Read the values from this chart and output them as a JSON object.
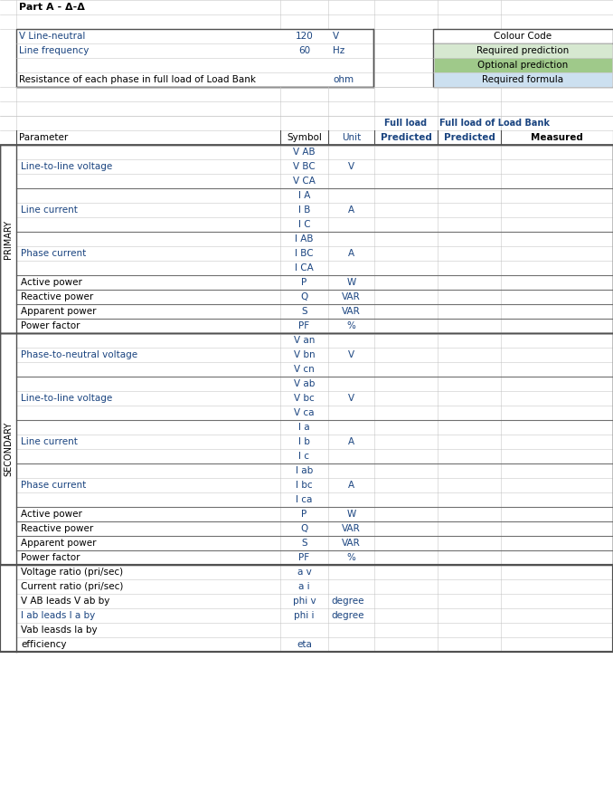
{
  "title": "Part A - Δ-Δ",
  "header_info": [
    {
      "label": "V Line-neutral",
      "value": "120",
      "unit": "V",
      "label_color": "blue"
    },
    {
      "label": "Line frequency",
      "value": "60",
      "unit": "Hz",
      "label_color": "blue"
    },
    {
      "label": "",
      "value": "",
      "unit": "",
      "label_color": "black"
    },
    {
      "label": "Resistance of each phase in full load of Load Bank",
      "value": "",
      "unit": "ohm",
      "label_color": "black",
      "green_cell": true
    }
  ],
  "colour_code": {
    "title": "Colour Code",
    "items": [
      {
        "label": "Required prediction",
        "color": "#d6e8d0"
      },
      {
        "label": "Optional prediction",
        "color": "#9fc98a"
      },
      {
        "label": "Required formula",
        "color": "#cce0f0"
      }
    ]
  },
  "primary_label": "PRIMARY",
  "secondary_label": "SECONDARY",
  "primary_rows": [
    {
      "param": "Line-to-line voltage",
      "symbols": [
        "V AB",
        "V BC",
        "V CA"
      ],
      "unit": "V",
      "pred_full": [
        true,
        false,
        false
      ],
      "pred_lb": [
        true,
        false,
        false
      ],
      "param_color": "blue"
    },
    {
      "param": "Line current",
      "symbols": [
        "I A",
        "I B",
        "I C"
      ],
      "unit": "A",
      "pred_full": [
        true,
        false,
        false
      ],
      "pred_lb": [
        true,
        false,
        false
      ],
      "param_color": "blue"
    },
    {
      "param": "Phase current",
      "symbols": [
        "I AB",
        "I BC",
        "I CA"
      ],
      "unit": "A",
      "pred_full": [
        true,
        false,
        false
      ],
      "pred_lb": [
        true,
        false,
        false
      ],
      "param_color": "blue"
    },
    {
      "param": "Active power",
      "symbols": [
        "P"
      ],
      "unit": "W",
      "pred_full": [
        false
      ],
      "pred_lb": [
        true
      ],
      "param_color": "black"
    },
    {
      "param": "Reactive power",
      "symbols": [
        "Q"
      ],
      "unit": "VAR",
      "pred_full": [
        false
      ],
      "pred_lb": [
        true
      ],
      "param_color": "black"
    },
    {
      "param": "Apparent power",
      "symbols": [
        "S"
      ],
      "unit": "VAR",
      "pred_full": [
        false
      ],
      "pred_lb": [
        false
      ],
      "param_color": "black"
    },
    {
      "param": "Power factor",
      "symbols": [
        "PF"
      ],
      "unit": "%",
      "pred_full": [
        false
      ],
      "pred_lb": [
        true
      ],
      "param_color": "black"
    }
  ],
  "secondary_rows": [
    {
      "param": "Phase-to-neutral voltage",
      "symbols": [
        "V an",
        "V bn",
        "V cn"
      ],
      "unit": "V",
      "pred_full": [
        false,
        false,
        false
      ],
      "pred_lb": [
        false,
        false,
        false
      ],
      "param_color": "blue"
    },
    {
      "param": "Line-to-line voltage",
      "symbols": [
        "V ab",
        "V bc",
        "V ca"
      ],
      "unit": "V",
      "pred_full": [
        true,
        false,
        false
      ],
      "pred_lb": [
        true,
        false,
        false
      ],
      "param_color": "blue"
    },
    {
      "param": "Line current",
      "symbols": [
        "I a",
        "I b",
        "I c"
      ],
      "unit": "A",
      "pred_full": [
        true,
        false,
        false
      ],
      "pred_lb": [
        true,
        false,
        false
      ],
      "param_color": "blue"
    },
    {
      "param": "Phase current",
      "symbols": [
        "I ab",
        "I bc",
        "I ca"
      ],
      "unit": "A",
      "pred_full": [
        true,
        false,
        false
      ],
      "pred_lb": [
        true,
        false,
        false
      ],
      "param_color": "blue"
    },
    {
      "param": "Active power",
      "symbols": [
        "P"
      ],
      "unit": "W",
      "pred_full": [
        false
      ],
      "pred_lb": [
        false
      ],
      "param_color": "black"
    },
    {
      "param": "Reactive power",
      "symbols": [
        "Q"
      ],
      "unit": "VAR",
      "pred_full": [
        false
      ],
      "pred_lb": [
        false
      ],
      "param_color": "black"
    },
    {
      "param": "Apparent power",
      "symbols": [
        "S"
      ],
      "unit": "VAR",
      "pred_full": [
        false
      ],
      "pred_lb": [
        false
      ],
      "param_color": "black"
    },
    {
      "param": "Power factor",
      "symbols": [
        "PF"
      ],
      "unit": "%",
      "pred_full": [
        false
      ],
      "pred_lb": [
        false
      ],
      "param_color": "black"
    }
  ],
  "bottom_rows": [
    {
      "param": "Voltage ratio (pri/sec)",
      "symbol": "a v",
      "unit": "",
      "pred_full": true,
      "pred_lb": true,
      "measured": true,
      "param_color": "black"
    },
    {
      "param": "Current ratio (pri/sec)",
      "symbol": "a i",
      "unit": "",
      "pred_full": true,
      "pred_lb": true,
      "measured": true,
      "param_color": "black"
    },
    {
      "param": "V AB leads V ab by",
      "symbol": "phi v",
      "unit": "degree",
      "pred_full": false,
      "pred_lb": false,
      "measured": false,
      "param_color": "black"
    },
    {
      "param": "I ab leads I a by",
      "symbol": "phi i",
      "unit": "degree",
      "pred_full": false,
      "pred_lb": false,
      "measured": false,
      "param_color": "blue"
    },
    {
      "param": "Vab leasds Ia by",
      "symbol": "",
      "unit": "",
      "pred_full": false,
      "pred_lb": false,
      "measured": false,
      "param_color": "black"
    },
    {
      "param": "efficiency",
      "symbol": "eta",
      "unit": "",
      "pred_full": false,
      "pred_lb": false,
      "measured": true,
      "param_color": "black"
    }
  ],
  "colors": {
    "light_green": "#d6e8d0",
    "medium_green": "#9fc98a",
    "light_blue": "#cce0f0",
    "text_blue": "#1a4480",
    "text_orange": "#b05010",
    "grid_line": "#c8c8c8",
    "thick_border": "#505050",
    "bg_white": "#ffffff"
  }
}
